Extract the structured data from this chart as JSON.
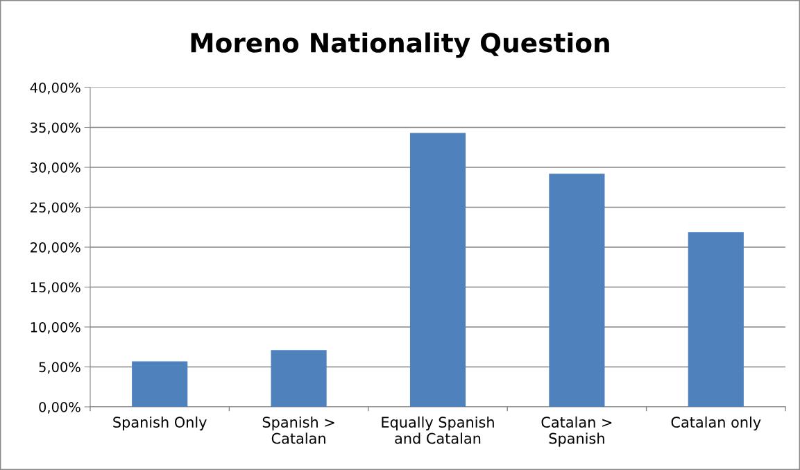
{
  "chart_data": {
    "type": "bar",
    "title": "Moreno Nationality Question",
    "categories": [
      "Spanish Only",
      "Spanish > Catalan",
      "Equally Spanish and Catalan",
      "Catalan > Spanish",
      "Catalan only"
    ],
    "values": [
      5.7,
      7.1,
      34.3,
      29.2,
      21.9
    ],
    "color": "#4f81bd",
    "ylim": [
      0,
      40
    ],
    "yticks": [
      {
        "value": 0,
        "label": "0,00%"
      },
      {
        "value": 5,
        "label": "5,00%"
      },
      {
        "value": 10,
        "label": "10,00%"
      },
      {
        "value": 15,
        "label": "15,00%"
      },
      {
        "value": 20,
        "label": "20,00%"
      },
      {
        "value": 25,
        "label": "25,00%"
      },
      {
        "value": 30,
        "label": "30,00%"
      },
      {
        "value": 35,
        "label": "35,00%"
      },
      {
        "value": 40,
        "label": "40,00%"
      }
    ],
    "grid": "y",
    "legend": false
  }
}
